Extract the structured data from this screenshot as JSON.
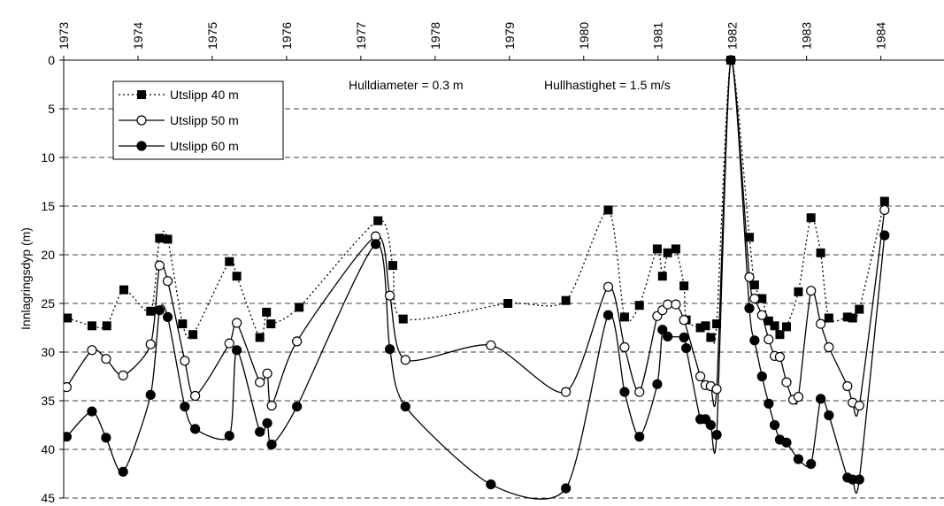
{
  "chart_data": {
    "type": "line",
    "y_label": "Innlagringsdyp (m)",
    "annotations": [
      "Hulldiameter = 0.3 m",
      "Hullhastighet = 1.5 m/s"
    ],
    "xlim": [
      1973,
      1984.85
    ],
    "xticks": [
      1973,
      1974,
      1975,
      1976,
      1977,
      1978,
      1979,
      1980,
      1981,
      1982,
      1983,
      1984
    ],
    "ylim": [
      0,
      45
    ],
    "yticks": [
      0,
      5,
      10,
      15,
      20,
      25,
      30,
      35,
      40,
      45
    ],
    "y_inverted": true,
    "grid": true,
    "smooth": true,
    "legend": "upper left",
    "series": [
      {
        "name": "Utslipp 40 m",
        "color": "#000000",
        "line_style": "dotted",
        "marker": "square",
        "x": [
          1973.05,
          1973.38,
          1973.58,
          1973.81,
          1974.17,
          1974.29,
          1974.4,
          1974.6,
          1974.74,
          1975.23,
          1975.33,
          1975.64,
          1975.73,
          1975.79,
          1976.17,
          1977.23,
          1977.43,
          1977.57,
          1978.98,
          1979.76,
          1980.33,
          1980.55,
          1980.75,
          1980.99,
          1981.06,
          1981.13,
          1981.24,
          1981.35,
          1981.38,
          1981.57,
          1981.64,
          1981.71,
          1981.79,
          1981.98,
          1982.23,
          1982.3,
          1982.4,
          1982.49,
          1982.57,
          1982.64,
          1982.73,
          1982.89,
          1983.06,
          1983.19,
          1983.3,
          1983.55,
          1983.62,
          1983.71,
          1984.05
        ],
        "values": [
          26.5,
          27.3,
          27.3,
          23.6,
          25.8,
          18.3,
          18.4,
          27.1,
          28.2,
          20.7,
          22.2,
          28.5,
          25.9,
          27.1,
          25.4,
          16.5,
          21.1,
          26.6,
          25.0,
          24.7,
          15.4,
          26.4,
          25.2,
          19.4,
          22.2,
          19.8,
          19.4,
          23.2,
          26.7,
          27.5,
          27.3,
          28.5,
          27.1,
          0,
          18.2,
          23.1,
          24.5,
          26.8,
          27.3,
          28.2,
          27.4,
          23.8,
          16.2,
          19.8,
          26.5,
          26.4,
          26.5,
          25.6,
          14.5
        ]
      },
      {
        "name": "Utslipp 50 m",
        "color": "#000000",
        "line_style": "solid",
        "marker": "circle-open",
        "x": [
          1973.04,
          1973.38,
          1973.57,
          1973.8,
          1974.17,
          1974.29,
          1974.4,
          1974.63,
          1974.77,
          1975.23,
          1975.33,
          1975.64,
          1975.74,
          1975.8,
          1976.14,
          1977.2,
          1977.39,
          1977.6,
          1978.75,
          1979.76,
          1980.33,
          1980.55,
          1980.75,
          1980.99,
          1981.06,
          1981.13,
          1981.24,
          1981.35,
          1981.57,
          1981.64,
          1981.71,
          1981.79,
          1981.98,
          1982.23,
          1982.3,
          1982.4,
          1982.49,
          1982.57,
          1982.64,
          1982.73,
          1982.82,
          1982.89,
          1983.06,
          1983.19,
          1983.3,
          1983.55,
          1983.62,
          1983.71,
          1984.05
        ],
        "values": [
          33.6,
          29.8,
          30.7,
          32.4,
          29.2,
          21.1,
          22.7,
          30.9,
          34.5,
          29.1,
          27.0,
          33.1,
          32.2,
          35.5,
          28.9,
          18.1,
          24.2,
          30.8,
          29.3,
          34.1,
          23.3,
          29.5,
          34.1,
          26.3,
          25.7,
          25.1,
          25.1,
          26.7,
          32.5,
          33.4,
          33.5,
          33.8,
          0,
          22.3,
          24.5,
          26.2,
          28.7,
          30.4,
          30.5,
          33.1,
          34.9,
          34.6,
          23.7,
          27.1,
          29.5,
          33.5,
          35.2,
          35.5,
          15.4
        ]
      },
      {
        "name": "Utslipp 60 m",
        "color": "#000000",
        "line_style": "solid",
        "marker": "circle",
        "x": [
          1973.04,
          1973.38,
          1973.57,
          1973.8,
          1974.17,
          1974.29,
          1974.4,
          1974.63,
          1974.77,
          1975.23,
          1975.33,
          1975.64,
          1975.74,
          1975.8,
          1976.14,
          1977.2,
          1977.39,
          1977.6,
          1978.75,
          1979.76,
          1980.33,
          1980.55,
          1980.75,
          1980.99,
          1981.06,
          1981.13,
          1981.35,
          1981.38,
          1981.57,
          1981.64,
          1981.71,
          1981.79,
          1981.98,
          1982.23,
          1982.3,
          1982.4,
          1982.49,
          1982.57,
          1982.64,
          1982.73,
          1982.89,
          1983.06,
          1983.19,
          1983.3,
          1983.55,
          1983.62,
          1983.71,
          1984.05
        ],
        "values": [
          38.7,
          36.1,
          38.8,
          42.3,
          34.4,
          25.7,
          26.4,
          35.6,
          37.9,
          38.6,
          29.8,
          38.2,
          37.3,
          39.5,
          35.6,
          18.9,
          29.7,
          35.6,
          43.6,
          44.0,
          26.2,
          34.1,
          38.7,
          33.3,
          27.7,
          28.4,
          28.5,
          29.6,
          36.9,
          36.9,
          37.5,
          38.5,
          0,
          25.5,
          28.8,
          32.5,
          35.3,
          37.5,
          39.0,
          39.3,
          41.0,
          41.5,
          34.8,
          36.5,
          42.9,
          43.1,
          43.1,
          18.0
        ]
      }
    ]
  }
}
